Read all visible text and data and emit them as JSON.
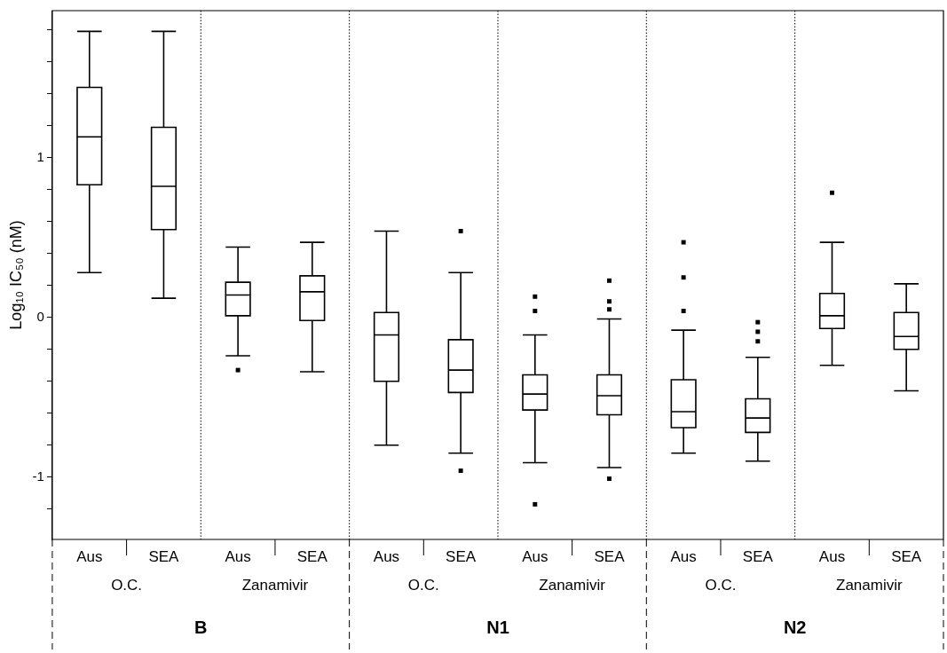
{
  "chart_data": {
    "type": "box",
    "ylabel": "Log₁₀ IC₅₀ (nM)",
    "categories": [
      "Aus",
      "SEA",
      "Aus",
      "SEA",
      "Aus",
      "SEA",
      "Aus",
      "SEA",
      "Aus",
      "SEA",
      "Aus",
      "SEA"
    ],
    "color": "#000000",
    "marker": "square",
    "boxes": [
      {
        "low": 0.28,
        "q1": 0.83,
        "median": 1.13,
        "q3": 1.44,
        "high": 1.79
      },
      {
        "low": 0.12,
        "q1": 0.55,
        "median": 0.82,
        "q3": 1.19,
        "high": 1.79
      },
      {
        "low": -0.24,
        "q1": 0.01,
        "median": 0.14,
        "q3": 0.22,
        "high": 0.44,
        "outliers": [
          -0.33
        ]
      },
      {
        "low": -0.34,
        "q1": -0.02,
        "median": 0.16,
        "q3": 0.26,
        "high": 0.47
      },
      {
        "low": -0.8,
        "q1": -0.4,
        "median": -0.11,
        "q3": 0.03,
        "high": 0.54
      },
      {
        "low": -0.85,
        "q1": -0.47,
        "median": -0.33,
        "q3": -0.14,
        "high": 0.28,
        "outliers": [
          0.54,
          -0.96
        ]
      },
      {
        "low": -0.91,
        "q1": -0.58,
        "median": -0.48,
        "q3": -0.36,
        "high": -0.11,
        "outliers": [
          0.13,
          0.04,
          -1.17
        ]
      },
      {
        "low": -0.94,
        "q1": -0.61,
        "median": -0.49,
        "q3": -0.36,
        "high": -0.01,
        "outliers": [
          0.23,
          0.1,
          0.05,
          -1.01
        ]
      },
      {
        "low": -0.85,
        "q1": -0.69,
        "median": -0.59,
        "q3": -0.39,
        "high": -0.08,
        "outliers": [
          0.47,
          0.25,
          0.04
        ]
      },
      {
        "low": -0.9,
        "q1": -0.72,
        "median": -0.63,
        "q3": -0.51,
        "high": -0.25,
        "outliers": [
          -0.03,
          -0.09,
          -0.15
        ]
      },
      {
        "low": -0.3,
        "q1": -0.07,
        "median": 0.01,
        "q3": 0.15,
        "high": 0.47,
        "outliers": [
          0.78
        ]
      },
      {
        "low": -0.46,
        "q1": -0.2,
        "median": -0.12,
        "q3": 0.03,
        "high": 0.21
      }
    ],
    "ylim": [
      -1.39,
      1.92
    ],
    "yticks": [
      {
        "value": -1.2,
        "label": null
      },
      {
        "value": -1,
        "label": "-1"
      },
      {
        "value": -0.8,
        "label": null
      },
      {
        "value": -0.6,
        "label": null
      },
      {
        "value": -0.4,
        "label": null
      },
      {
        "value": -0.2,
        "label": null
      },
      {
        "value": 0,
        "label": "0"
      },
      {
        "value": 0.2,
        "label": null
      },
      {
        "value": 0.4,
        "label": null
      },
      {
        "value": 0.6,
        "label": null
      },
      {
        "value": 0.8,
        "label": null
      },
      {
        "value": 1,
        "label": "1"
      },
      {
        "value": 1.2,
        "label": null
      },
      {
        "value": 1.4,
        "label": null
      },
      {
        "value": 1.6,
        "label": null
      },
      {
        "value": 1.8,
        "label": null
      }
    ],
    "grid": false,
    "legend": false,
    "annotations": [
      "O.C.",
      "Zanamivir",
      "O.C.",
      "Zanamivir",
      "O.C.",
      "Zanamivir",
      "B",
      "N1",
      "N2"
    ]
  }
}
